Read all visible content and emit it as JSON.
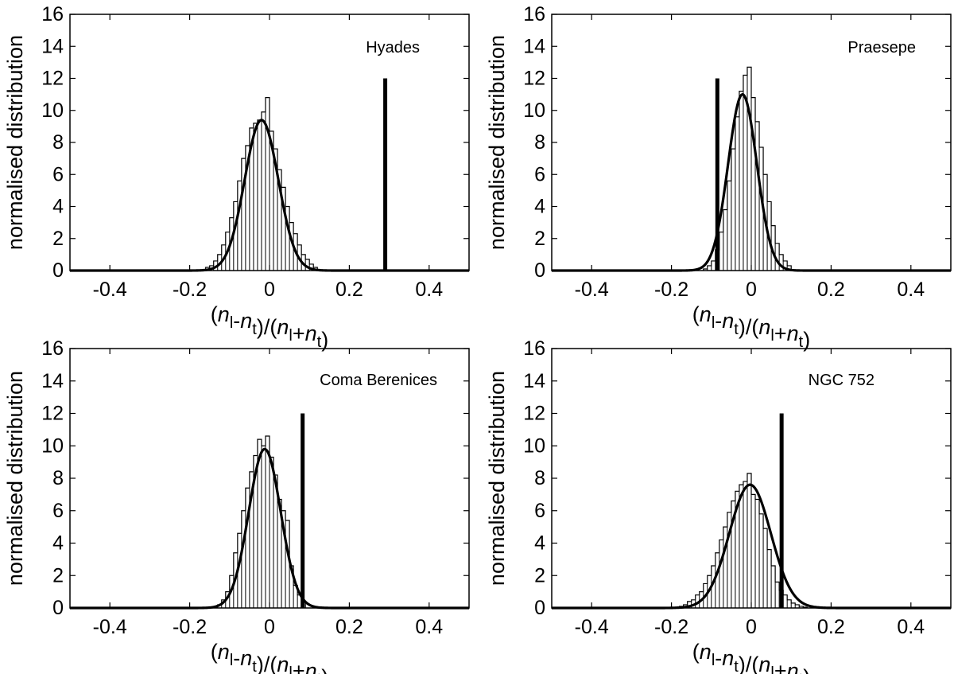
{
  "chart_data": [
    {
      "type": "histogram",
      "panel": "top-left",
      "annotation": "Hyades",
      "ylabel": "normalised distribution",
      "xlabel": {
        "p1": "(",
        "n1": "n",
        "s1": "l",
        "m1": "-",
        "n2": "n",
        "s2": "t",
        "m2": ")/(",
        "n3": "n",
        "s3": "l",
        "m3": "+",
        "n4": "n",
        "s4": "t",
        "m4": ")"
      },
      "xlim": [
        -0.5,
        0.5
      ],
      "ylim": [
        0,
        16
      ],
      "xticks": [
        -0.4,
        -0.2,
        0,
        0.2,
        0.4
      ],
      "xtick_labels": [
        "-0.4",
        "-0.2",
        "0",
        "0.2",
        "0.4"
      ],
      "yticks": [
        0,
        2,
        4,
        6,
        8,
        10,
        12,
        14,
        16
      ],
      "ytick_labels": [
        "0",
        "2",
        "4",
        "6",
        "8",
        "10",
        "12",
        "14",
        "16"
      ],
      "hist": {
        "bin_width": 0.01,
        "bin_edges_start": -0.16,
        "values": [
          0.2,
          0.3,
          0.6,
          1.0,
          1.6,
          2.4,
          3.3,
          4.3,
          5.6,
          7.0,
          7.8,
          8.9,
          9.2,
          9.4,
          9.9,
          10.8,
          8.7,
          7.6,
          6.3,
          5.2,
          4.0,
          3.0,
          2.3,
          1.6,
          1.0,
          0.7,
          0.4,
          0.2
        ]
      },
      "gaussian": {
        "mu": -0.02,
        "sigma": 0.042,
        "amplitude": 9.4
      },
      "observed_line": {
        "x": 0.29,
        "height": 12
      }
    },
    {
      "type": "histogram",
      "panel": "top-right",
      "annotation": "Praesepe",
      "ylabel": "normalised distribution",
      "xlabel": {
        "p1": "(",
        "n1": "n",
        "s1": "l",
        "m1": "-",
        "n2": "n",
        "s2": "t",
        "m2": ")/(",
        "n3": "n",
        "s3": "l",
        "m3": "+",
        "n4": "n",
        "s4": "t",
        "m4": ")"
      },
      "xlim": [
        -0.5,
        0.5
      ],
      "ylim": [
        0,
        16
      ],
      "xticks": [
        -0.4,
        -0.2,
        0,
        0.2,
        0.4
      ],
      "xtick_labels": [
        "-0.4",
        "-0.2",
        "0",
        "0.2",
        "0.4"
      ],
      "yticks": [
        0,
        2,
        4,
        6,
        8,
        10,
        12,
        14,
        16
      ],
      "ytick_labels": [
        "0",
        "2",
        "4",
        "6",
        "8",
        "10",
        "12",
        "14",
        "16"
      ],
      "hist": {
        "bin_width": 0.01,
        "bin_edges_start": -0.12,
        "values": [
          0.1,
          0.3,
          0.6,
          1.3,
          2.4,
          3.8,
          5.6,
          7.6,
          9.6,
          11.2,
          12.2,
          12.7,
          10.8,
          9.3,
          7.7,
          6.0,
          4.3,
          2.8,
          1.7,
          1.0,
          0.6,
          0.3
        ]
      },
      "gaussian": {
        "mu": -0.022,
        "sigma": 0.036,
        "amplitude": 11.0
      },
      "observed_line": {
        "x": -0.085,
        "height": 12
      }
    },
    {
      "type": "histogram",
      "panel": "bottom-left",
      "annotation": "Coma Berenices",
      "ylabel": "normalised distribution",
      "xlabel": {
        "p1": "(",
        "n1": "n",
        "s1": "l",
        "m1": "-",
        "n2": "n",
        "s2": "t",
        "m2": ")/(",
        "n3": "n",
        "s3": "l",
        "m3": "+",
        "n4": "n",
        "s4": "t",
        "m4": ")"
      },
      "xlim": [
        -0.5,
        0.5
      ],
      "ylim": [
        0,
        16
      ],
      "xticks": [
        -0.4,
        -0.2,
        0,
        0.2,
        0.4
      ],
      "xtick_labels": [
        "-0.4",
        "-0.2",
        "0",
        "0.2",
        "0.4"
      ],
      "yticks": [
        0,
        2,
        4,
        6,
        8,
        10,
        12,
        14,
        16
      ],
      "ytick_labels": [
        "0",
        "2",
        "4",
        "6",
        "8",
        "10",
        "12",
        "14",
        "16"
      ],
      "hist": {
        "bin_width": 0.01,
        "bin_edges_start": -0.13,
        "values": [
          0.2,
          0.5,
          1.0,
          2.0,
          3.4,
          4.6,
          6.0,
          7.4,
          8.4,
          9.4,
          10.4,
          10.0,
          10.6,
          9.3,
          8.2,
          6.7,
          6.0,
          5.4,
          2.6,
          1.4,
          0.8,
          0.4
        ]
      },
      "gaussian": {
        "mu": -0.012,
        "sigma": 0.04,
        "amplitude": 9.8
      },
      "observed_line": {
        "x": 0.083,
        "height": 12
      }
    },
    {
      "type": "histogram",
      "panel": "bottom-right",
      "annotation": "NGC 752",
      "ylabel": "normalised distribution",
      "xlabel": {
        "p1": "(",
        "n1": "n",
        "s1": "l",
        "m1": "-",
        "n2": "n",
        "s2": "t",
        "m2": ")/(",
        "n3": "n",
        "s3": "l",
        "m3": "+",
        "n4": "n",
        "s4": "t",
        "m4": ")"
      },
      "xlim": [
        -0.5,
        0.5
      ],
      "ylim": [
        0,
        16
      ],
      "xticks": [
        -0.4,
        -0.2,
        0,
        0.2,
        0.4
      ],
      "xtick_labels": [
        "-0.4",
        "-0.2",
        "0",
        "0.2",
        "0.4"
      ],
      "yticks": [
        0,
        2,
        4,
        6,
        8,
        10,
        12,
        14,
        16
      ],
      "ytick_labels": [
        "0",
        "2",
        "4",
        "6",
        "8",
        "10",
        "12",
        "14",
        "16"
      ],
      "hist": {
        "bin_width": 0.01,
        "bin_edges_start": -0.18,
        "values": [
          0.1,
          0.2,
          0.4,
          0.5,
          0.8,
          1.0,
          1.5,
          2.0,
          2.6,
          3.4,
          4.2,
          5.0,
          5.9,
          6.6,
          7.2,
          7.6,
          7.8,
          8.3,
          7.0,
          6.7,
          5.8,
          4.9,
          3.6,
          2.6,
          1.6,
          1.1,
          0.8,
          0.5,
          0.3,
          0.2,
          0.1,
          0.05
        ]
      },
      "gaussian": {
        "mu": -0.003,
        "sigma": 0.052,
        "amplitude": 7.6
      },
      "observed_line": {
        "x": 0.076,
        "height": 12
      }
    }
  ]
}
